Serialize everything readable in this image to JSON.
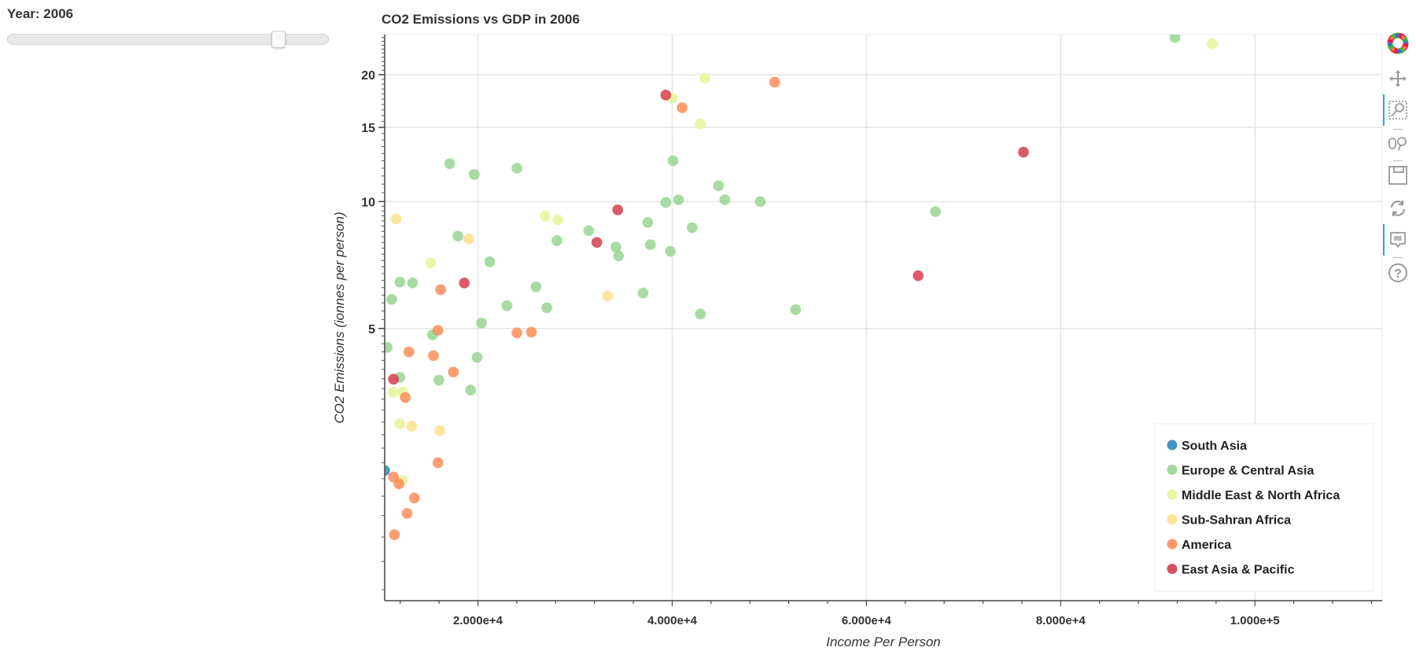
{
  "slider": {
    "label": "Year: 2006",
    "year": 2006,
    "position_fraction": 0.856
  },
  "toolbar": {
    "tools": [
      "bokeh-logo-icon",
      "pan-icon",
      "box-zoom-icon",
      "wheel-zoom-icon",
      "save-icon",
      "reset-icon",
      "hover-icon",
      "help-icon"
    ]
  },
  "chart_data": {
    "type": "scatter",
    "title": "CO2 Emissions vs GDP in 2006",
    "xlabel": "Income Per Person",
    "ylabel": "CO2 Emissions (ionnes per person)",
    "xlim": [
      10400,
      113100
    ],
    "ylim": [
      1.13,
      24.9
    ],
    "xscale": "linear",
    "yscale": "log",
    "x_ticks": [
      20000,
      40000,
      60000,
      80000,
      100000
    ],
    "x_tick_labels": [
      "2.000e+4",
      "4.000e+4",
      "6.000e+4",
      "8.000e+4",
      "1.000e+5"
    ],
    "y_ticks": [
      5,
      10,
      15,
      20
    ],
    "y_tick_labels": [
      "5",
      "10",
      "15",
      "20"
    ],
    "grid": true,
    "legend_placement": "bottom-right",
    "series": [
      {
        "name": "South Asia",
        "color": "#3288bd",
        "points": [
          [
            10400,
            2.3
          ]
        ]
      },
      {
        "name": "Europe & Central Asia",
        "color": "#99d594",
        "points": [
          [
            91776,
            24.5
          ],
          [
            17103,
            12.3
          ],
          [
            19626,
            11.6
          ],
          [
            24019,
            12.0
          ],
          [
            40093,
            12.5
          ],
          [
            44766,
            10.9
          ],
          [
            39345,
            9.95
          ],
          [
            40654,
            10.1
          ],
          [
            45421,
            10.1
          ],
          [
            49066,
            10.0
          ],
          [
            67103,
            9.47
          ],
          [
            31402,
            8.53
          ],
          [
            37476,
            8.92
          ],
          [
            17944,
            8.28
          ],
          [
            28131,
            8.08
          ],
          [
            34206,
            7.8
          ],
          [
            37757,
            7.9
          ],
          [
            39813,
            7.62
          ],
          [
            34486,
            7.43
          ],
          [
            42056,
            8.67
          ],
          [
            21215,
            7.2
          ],
          [
            11963,
            6.44
          ],
          [
            13271,
            6.41
          ],
          [
            11121,
            5.86
          ],
          [
            25981,
            6.28
          ],
          [
            37009,
            6.07
          ],
          [
            22991,
            5.66
          ],
          [
            27103,
            5.6
          ],
          [
            42897,
            5.41
          ],
          [
            52710,
            5.54
          ],
          [
            20374,
            5.15
          ],
          [
            15327,
            4.83
          ],
          [
            10654,
            4.51
          ],
          [
            19907,
            4.27
          ],
          [
            11963,
            3.83
          ],
          [
            15981,
            3.77
          ],
          [
            19252,
            3.57
          ]
        ]
      },
      {
        "name": "Middle East & North Africa",
        "color": "#e6f598",
        "points": [
          [
            95607,
            23.7
          ],
          [
            43364,
            19.6
          ],
          [
            40000,
            17.6
          ],
          [
            42897,
            15.3
          ],
          [
            26916,
            9.24
          ],
          [
            28224,
            9.06
          ],
          [
            15140,
            7.15
          ],
          [
            11308,
            3.53
          ],
          [
            12243,
            3.53
          ],
          [
            11963,
            2.97
          ],
          [
            12243,
            2.18
          ]
        ]
      },
      {
        "name": "Sub-Sahran Africa",
        "color": "#fee08b",
        "points": [
          [
            11589,
            9.1
          ],
          [
            19065,
            8.16
          ],
          [
            33364,
            5.97
          ],
          [
            13178,
            2.93
          ],
          [
            16075,
            2.86
          ]
        ]
      },
      {
        "name": "America",
        "color": "#fc8d59",
        "points": [
          [
            50561,
            19.2
          ],
          [
            41028,
            16.7
          ],
          [
            16168,
            6.18
          ],
          [
            15888,
            4.95
          ],
          [
            24019,
            4.88
          ],
          [
            25514,
            4.9
          ],
          [
            12897,
            4.4
          ],
          [
            15420,
            4.31
          ],
          [
            17477,
            3.94
          ],
          [
            12523,
            3.43
          ],
          [
            15888,
            2.4
          ],
          [
            11308,
            2.22
          ],
          [
            11869,
            2.14
          ],
          [
            13458,
            1.98
          ],
          [
            12710,
            1.82
          ],
          [
            11402,
            1.62
          ]
        ]
      },
      {
        "name": "East Asia & Pacific",
        "color": "#d53e4f",
        "points": [
          [
            39345,
            17.9
          ],
          [
            34393,
            9.56
          ],
          [
            32243,
            8.0
          ],
          [
            18598,
            6.41
          ],
          [
            11308,
            3.79
          ],
          [
            76168,
            13.1
          ],
          [
            65327,
            6.67
          ]
        ]
      }
    ]
  }
}
